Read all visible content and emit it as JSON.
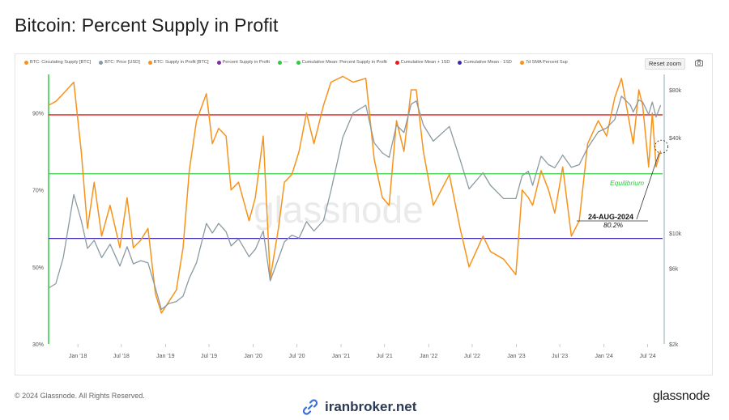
{
  "page": {
    "title": "Bitcoin: Percent Supply in Profit"
  },
  "toolbar": {
    "reset_zoom": "Reset zoom",
    "camera_icon": "camera-icon"
  },
  "legend": [
    {
      "label": "BTC: Circulating Supply [BTC]",
      "color": "#f7931a"
    },
    {
      "label": "BTC: Price [USD]",
      "color": "#8a9aa0"
    },
    {
      "label": "BTC: Supply in Profit [BTC]",
      "color": "#f7931a"
    },
    {
      "label": "Percent Supply in Profit",
      "color": "#7b2fa0"
    },
    {
      "label": "—",
      "color": "#2ecc40"
    },
    {
      "label": "Cumulative Mean: Percent Supply in Profit",
      "color": "#2ecc40"
    },
    {
      "label": "Cumulative Mean + 1SD",
      "color": "#e81b1b"
    },
    {
      "label": "Cumulative Mean - 1SD",
      "color": "#3b2bb0"
    },
    {
      "label": "7d SMA Percent Sup",
      "color": "#f7931a"
    }
  ],
  "watermark": "glassnode",
  "annotation": {
    "label": "Equilibrium",
    "date": "24-AUG-2024",
    "value": "80.2%"
  },
  "footer": {
    "copyright": "© 2024 Glassnode. All Rights Reserved.",
    "site": "iranbroker.net",
    "brand": "glassnode"
  },
  "colors": {
    "profit": "#f7931a",
    "price": "#8a9aa0",
    "mean": "#2ecc40",
    "upper": "#e81b1b",
    "lower": "#3b2bb0",
    "axis_left": "#2ecc40",
    "axis_right": "#8fa9b3"
  },
  "chart_data": {
    "type": "line",
    "title": "Bitcoin: Percent Supply in Profit",
    "x_axis": {
      "type": "date",
      "range": [
        "2017-09-01",
        "2024-09-01"
      ],
      "ticks": [
        {
          "date": "2018-01-01",
          "label": "Jan '18"
        },
        {
          "date": "2018-07-01",
          "label": "Jul '18"
        },
        {
          "date": "2019-01-01",
          "label": "Jan '19"
        },
        {
          "date": "2019-07-01",
          "label": "Jul '19"
        },
        {
          "date": "2020-01-01",
          "label": "Jan '20"
        },
        {
          "date": "2020-07-01",
          "label": "Jul '20"
        },
        {
          "date": "2021-01-01",
          "label": "Jan '21"
        },
        {
          "date": "2021-07-01",
          "label": "Jul '21"
        },
        {
          "date": "2022-01-01",
          "label": "Jan '22"
        },
        {
          "date": "2022-07-01",
          "label": "Jul '22"
        },
        {
          "date": "2023-01-01",
          "label": "Jan '23"
        },
        {
          "date": "2023-07-01",
          "label": "Jul '23"
        },
        {
          "date": "2024-01-01",
          "label": "Jan '24"
        },
        {
          "date": "2024-07-01",
          "label": "Jul '24"
        }
      ]
    },
    "y_left": {
      "unit": "%",
      "range": [
        30,
        100
      ],
      "ticks": [
        {
          "value": 30,
          "label": "30%"
        },
        {
          "value": 50,
          "label": "50%"
        },
        {
          "value": 70,
          "label": "70%"
        },
        {
          "value": 90,
          "label": "90%"
        }
      ]
    },
    "y_right": {
      "scale": "log",
      "unit": "USD",
      "range": [
        2000,
        100000
      ],
      "ticks": [
        {
          "value": 2000,
          "label": "$2k"
        },
        {
          "value": 6000,
          "label": "$6k"
        },
        {
          "value": 10000,
          "label": "$10k"
        },
        {
          "value": 40000,
          "label": "$40k"
        },
        {
          "value": 80000,
          "label": "$80k"
        }
      ]
    },
    "reference_lines": [
      {
        "name": "Cumulative Mean + 1SD",
        "value": 89.5,
        "color": "#e81b1b"
      },
      {
        "name": "Cumulative Mean: Percent Supply in Profit",
        "value": 74.2,
        "color": "#2ecc40"
      },
      {
        "name": "Cumulative Mean - 1SD",
        "value": 57.4,
        "color": "#3b2bb0"
      }
    ],
    "series": [
      {
        "name": "7d SMA Percent Sup",
        "axis": "left",
        "color": "#f7931a",
        "points": [
          [
            "2017-09-01",
            92
          ],
          [
            "2017-10-01",
            93
          ],
          [
            "2017-11-01",
            95
          ],
          [
            "2017-12-15",
            98
          ],
          [
            "2018-01-15",
            80
          ],
          [
            "2018-02-10",
            60
          ],
          [
            "2018-03-10",
            72
          ],
          [
            "2018-04-10",
            58
          ],
          [
            "2018-05-15",
            66
          ],
          [
            "2018-06-25",
            55
          ],
          [
            "2018-07-25",
            68
          ],
          [
            "2018-08-20",
            55
          ],
          [
            "2018-09-20",
            57
          ],
          [
            "2018-10-20",
            60
          ],
          [
            "2018-11-20",
            43
          ],
          [
            "2018-12-15",
            38
          ],
          [
            "2019-01-15",
            41
          ],
          [
            "2019-02-15",
            44
          ],
          [
            "2019-03-15",
            55
          ],
          [
            "2019-04-10",
            75
          ],
          [
            "2019-05-10",
            88
          ],
          [
            "2019-06-20",
            95
          ],
          [
            "2019-07-15",
            82
          ],
          [
            "2019-08-10",
            86
          ],
          [
            "2019-09-10",
            84
          ],
          [
            "2019-10-01",
            70
          ],
          [
            "2019-11-01",
            72
          ],
          [
            "2019-12-15",
            62
          ],
          [
            "2020-01-10",
            68
          ],
          [
            "2020-02-12",
            84
          ],
          [
            "2020-03-12",
            47
          ],
          [
            "2020-04-15",
            60
          ],
          [
            "2020-05-10",
            72
          ],
          [
            "2020-06-10",
            74
          ],
          [
            "2020-07-10",
            80
          ],
          [
            "2020-08-10",
            90
          ],
          [
            "2020-09-10",
            82
          ],
          [
            "2020-10-20",
            92
          ],
          [
            "2020-11-20",
            98
          ],
          [
            "2021-01-08",
            99.5
          ],
          [
            "2021-02-20",
            98
          ],
          [
            "2021-04-14",
            99
          ],
          [
            "2021-05-19",
            78
          ],
          [
            "2021-06-22",
            68
          ],
          [
            "2021-07-20",
            66
          ],
          [
            "2021-08-20",
            88
          ],
          [
            "2021-09-20",
            80
          ],
          [
            "2021-10-20",
            96
          ],
          [
            "2021-11-10",
            96
          ],
          [
            "2021-12-10",
            80
          ],
          [
            "2022-01-20",
            66
          ],
          [
            "2022-03-28",
            74
          ],
          [
            "2022-05-12",
            60
          ],
          [
            "2022-06-18",
            50
          ],
          [
            "2022-08-15",
            58
          ],
          [
            "2022-09-15",
            54
          ],
          [
            "2022-11-09",
            52
          ],
          [
            "2022-12-30",
            48
          ],
          [
            "2023-01-25",
            70
          ],
          [
            "2023-02-20",
            68
          ],
          [
            "2023-03-10",
            66
          ],
          [
            "2023-04-14",
            75
          ],
          [
            "2023-05-15",
            70
          ],
          [
            "2023-06-10",
            64
          ],
          [
            "2023-07-13",
            76
          ],
          [
            "2023-08-18",
            58
          ],
          [
            "2023-09-20",
            62
          ],
          [
            "2023-10-25",
            82
          ],
          [
            "2023-12-08",
            88
          ],
          [
            "2024-01-12",
            84
          ],
          [
            "2024-02-15",
            94
          ],
          [
            "2024-03-14",
            99
          ],
          [
            "2024-04-20",
            86
          ],
          [
            "2024-05-02",
            82
          ],
          [
            "2024-05-25",
            96
          ],
          [
            "2024-06-10",
            92
          ],
          [
            "2024-07-05",
            76
          ],
          [
            "2024-07-20",
            90
          ],
          [
            "2024-08-05",
            76
          ],
          [
            "2024-08-24",
            80.2
          ]
        ]
      },
      {
        "name": "BTC: Price [USD]",
        "axis": "right",
        "color": "#8a9aa0",
        "points": [
          [
            "2017-09-01",
            4500
          ],
          [
            "2017-10-01",
            4800
          ],
          [
            "2017-11-01",
            7000
          ],
          [
            "2017-12-15",
            17500
          ],
          [
            "2018-01-15",
            12000
          ],
          [
            "2018-02-10",
            8000
          ],
          [
            "2018-03-10",
            9000
          ],
          [
            "2018-04-10",
            7000
          ],
          [
            "2018-05-15",
            8500
          ],
          [
            "2018-06-25",
            6200
          ],
          [
            "2018-07-25",
            8200
          ],
          [
            "2018-08-20",
            6400
          ],
          [
            "2018-09-20",
            6700
          ],
          [
            "2018-10-20",
            6500
          ],
          [
            "2018-11-20",
            4500
          ],
          [
            "2018-12-15",
            3300
          ],
          [
            "2019-01-15",
            3600
          ],
          [
            "2019-02-15",
            3700
          ],
          [
            "2019-03-15",
            4000
          ],
          [
            "2019-04-10",
            5200
          ],
          [
            "2019-05-10",
            6500
          ],
          [
            "2019-06-20",
            11500
          ],
          [
            "2019-07-15",
            10000
          ],
          [
            "2019-08-10",
            11500
          ],
          [
            "2019-09-10",
            10200
          ],
          [
            "2019-10-01",
            8300
          ],
          [
            "2019-11-01",
            9200
          ],
          [
            "2019-12-15",
            7100
          ],
          [
            "2020-01-10",
            7900
          ],
          [
            "2020-02-12",
            10300
          ],
          [
            "2020-03-12",
            5000
          ],
          [
            "2020-04-15",
            6900
          ],
          [
            "2020-05-10",
            8800
          ],
          [
            "2020-06-10",
            9700
          ],
          [
            "2020-07-10",
            9300
          ],
          [
            "2020-08-10",
            11800
          ],
          [
            "2020-09-10",
            10300
          ],
          [
            "2020-10-20",
            12000
          ],
          [
            "2020-11-20",
            18500
          ],
          [
            "2021-01-08",
            40000
          ],
          [
            "2021-02-20",
            57000
          ],
          [
            "2021-04-14",
            64000
          ],
          [
            "2021-05-19",
            37000
          ],
          [
            "2021-06-22",
            32000
          ],
          [
            "2021-07-20",
            30000
          ],
          [
            "2021-08-20",
            48000
          ],
          [
            "2021-09-20",
            43000
          ],
          [
            "2021-10-20",
            65000
          ],
          [
            "2021-11-10",
            68000
          ],
          [
            "2021-12-10",
            48000
          ],
          [
            "2022-01-20",
            38000
          ],
          [
            "2022-03-28",
            47000
          ],
          [
            "2022-05-12",
            29000
          ],
          [
            "2022-06-18",
            19000
          ],
          [
            "2022-08-15",
            24000
          ],
          [
            "2022-09-15",
            20000
          ],
          [
            "2022-11-09",
            16500
          ],
          [
            "2022-12-30",
            16500
          ],
          [
            "2023-01-25",
            23000
          ],
          [
            "2023-02-20",
            24500
          ],
          [
            "2023-03-10",
            20000
          ],
          [
            "2023-04-14",
            30500
          ],
          [
            "2023-05-15",
            27000
          ],
          [
            "2023-06-10",
            25800
          ],
          [
            "2023-07-13",
            31000
          ],
          [
            "2023-08-18",
            26000
          ],
          [
            "2023-09-20",
            27000
          ],
          [
            "2023-10-25",
            34500
          ],
          [
            "2023-12-08",
            43500
          ],
          [
            "2024-01-12",
            46000
          ],
          [
            "2024-02-15",
            52000
          ],
          [
            "2024-03-14",
            73000
          ],
          [
            "2024-04-20",
            64000
          ],
          [
            "2024-05-02",
            58000
          ],
          [
            "2024-05-25",
            69000
          ],
          [
            "2024-06-10",
            67000
          ],
          [
            "2024-07-05",
            56000
          ],
          [
            "2024-07-20",
            67000
          ],
          [
            "2024-08-05",
            54000
          ],
          [
            "2024-08-24",
            64000
          ]
        ]
      }
    ]
  }
}
